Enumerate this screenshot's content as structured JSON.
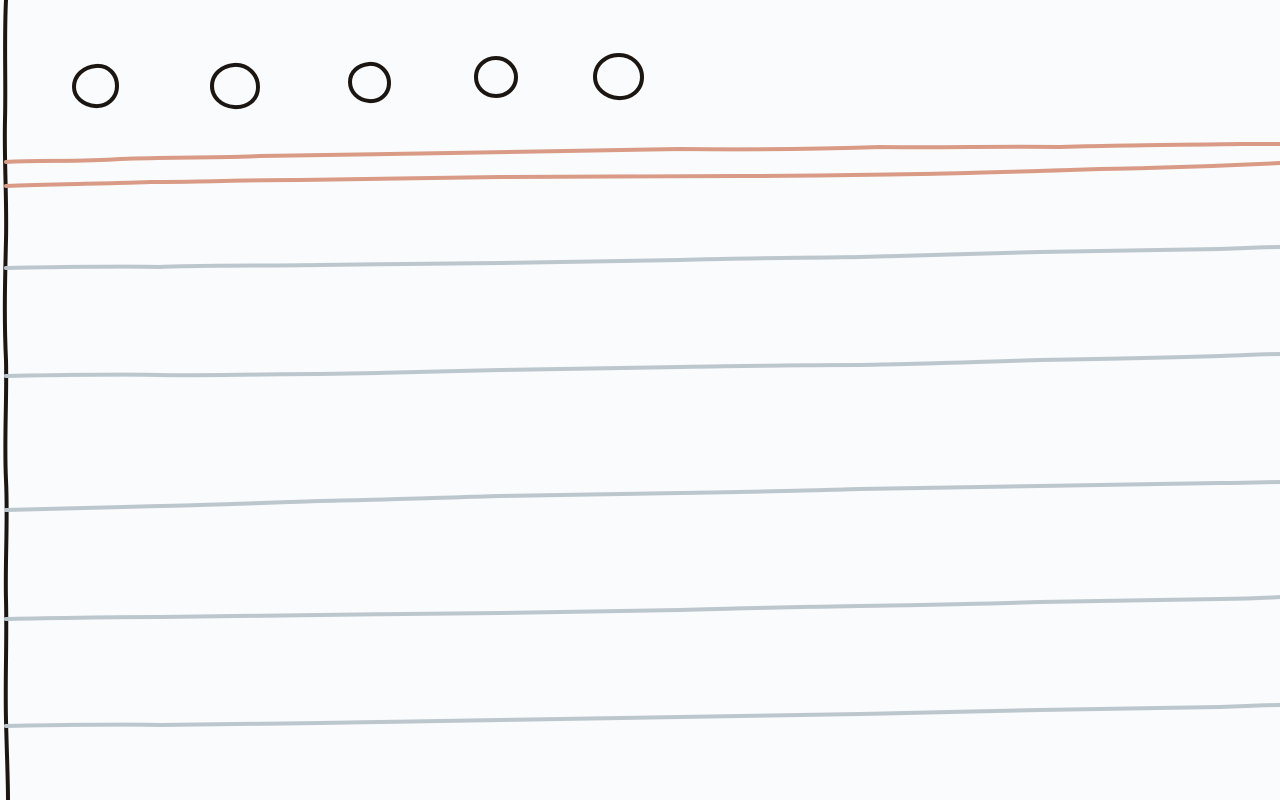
{
  "colors": {
    "background": "#f9fbfc",
    "ink": "#1b1612",
    "margin_rule": "#d99a86",
    "ruled_line": "#bcc6cd"
  },
  "sheet": {
    "binding_holes_count": 5,
    "margin_rules_count": 2,
    "ruled_lines_count": 5,
    "left_edge": "binding-edge-line",
    "style": "hand-drawn ruled notebook paper"
  }
}
